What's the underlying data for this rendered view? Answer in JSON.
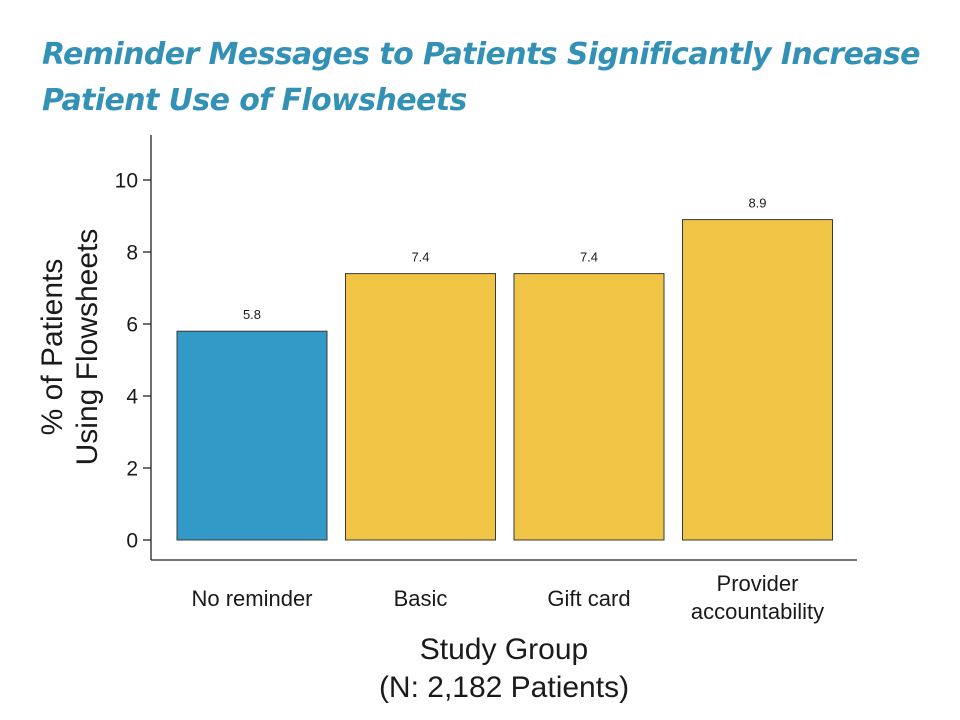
{
  "slide": {
    "title_line1": "Reminder Messages to Patients Significantly Increase",
    "title_line2": "Patient Use of Flowsheets",
    "title_color": "#3391b5"
  },
  "chart_data": {
    "type": "bar",
    "categories": [
      [
        "No reminder"
      ],
      [
        "Basic"
      ],
      [
        "Gift card"
      ],
      [
        "Provider",
        "accountability"
      ]
    ],
    "values": [
      5.8,
      7.4,
      7.4,
      8.9
    ],
    "data_labels": [
      "5.8",
      "7.4",
      "7.4",
      "8.9"
    ],
    "bar_colors": [
      "#3399c7",
      "#f0c445",
      "#f0c445",
      "#f0c445"
    ],
    "ylabel": [
      "% of Patients",
      "Using Flowsheets"
    ],
    "xlabel": [
      "Study Group",
      "(N: 2,182 Patients)"
    ],
    "ylim": [
      0,
      11
    ],
    "yticks": [
      0,
      2,
      4,
      6,
      8,
      10
    ],
    "grid": false,
    "legend": "none"
  }
}
